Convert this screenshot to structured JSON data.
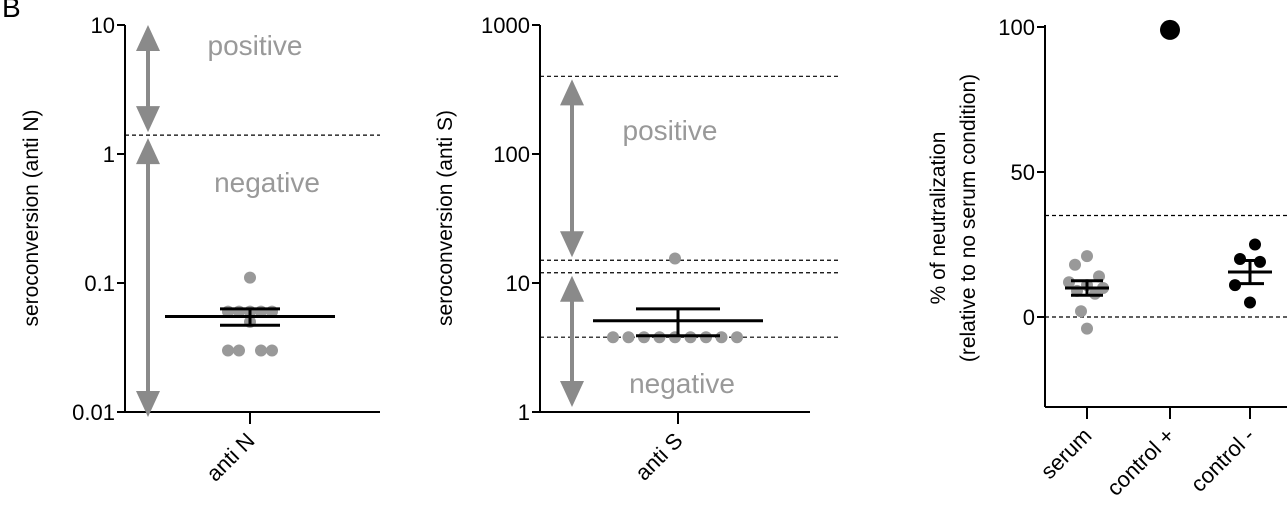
{
  "panel_label": "B",
  "chart_data": [
    {
      "type": "scatter",
      "scale": "log",
      "ylabel": "seroconversion (anti N)",
      "ylim": [
        0.01,
        10
      ],
      "yticks": [
        "0.01",
        "0.1",
        "1",
        "10"
      ],
      "categories": [
        "anti N"
      ],
      "cutoffs": [
        1.4
      ],
      "annotations": [
        "positive",
        "negative"
      ],
      "points": [
        0.11,
        0.06,
        0.06,
        0.06,
        0.06,
        0.06,
        0.03,
        0.03,
        0.03,
        0.03,
        0.05
      ],
      "mean": 0.055,
      "sem": [
        0.047,
        0.063
      ],
      "point_color": "#999999",
      "line_color": "#000000"
    },
    {
      "type": "scatter",
      "scale": "log",
      "ylabel": "seroconversion (anti S)",
      "ylim": [
        1,
        1000
      ],
      "yticks": [
        "1",
        "10",
        "100",
        "1000"
      ],
      "categories": [
        "anti S"
      ],
      "cutoffs": [
        400,
        15,
        12,
        3.8
      ],
      "annotations": [
        "positive",
        "negative"
      ],
      "points": [
        15.5,
        3.8,
        3.8,
        3.8,
        3.8,
        3.8,
        3.8,
        3.8,
        3.8,
        3.8
      ],
      "mean": 5.1,
      "sem": [
        3.9,
        6.3
      ],
      "point_color": "#999999",
      "line_color": "#000000"
    },
    {
      "type": "scatter",
      "scale": "linear",
      "ylabel": "% of neutralization",
      "ylabel2": "(relative to no serum condition)",
      "ylim": [
        -8,
        100
      ],
      "yticks": [
        "0",
        "50",
        "100"
      ],
      "categories": [
        "serum",
        "control +",
        "control -"
      ],
      "cutoffs": [
        35,
        0
      ],
      "groups": [
        {
          "name": "serum",
          "color": "#999999",
          "points": [
            21,
            18,
            14,
            12,
            11,
            10,
            9,
            8,
            2,
            -4
          ],
          "mean": 10,
          "sem": [
            7.5,
            12.5
          ]
        },
        {
          "name": "control +",
          "color": "#000000",
          "points": [
            99
          ],
          "mean": null,
          "sem": null
        },
        {
          "name": "control -",
          "color": "#000000",
          "points": [
            25,
            20,
            19,
            11,
            5
          ],
          "mean": 15.5,
          "sem": [
            11.5,
            19.5
          ]
        }
      ]
    }
  ]
}
